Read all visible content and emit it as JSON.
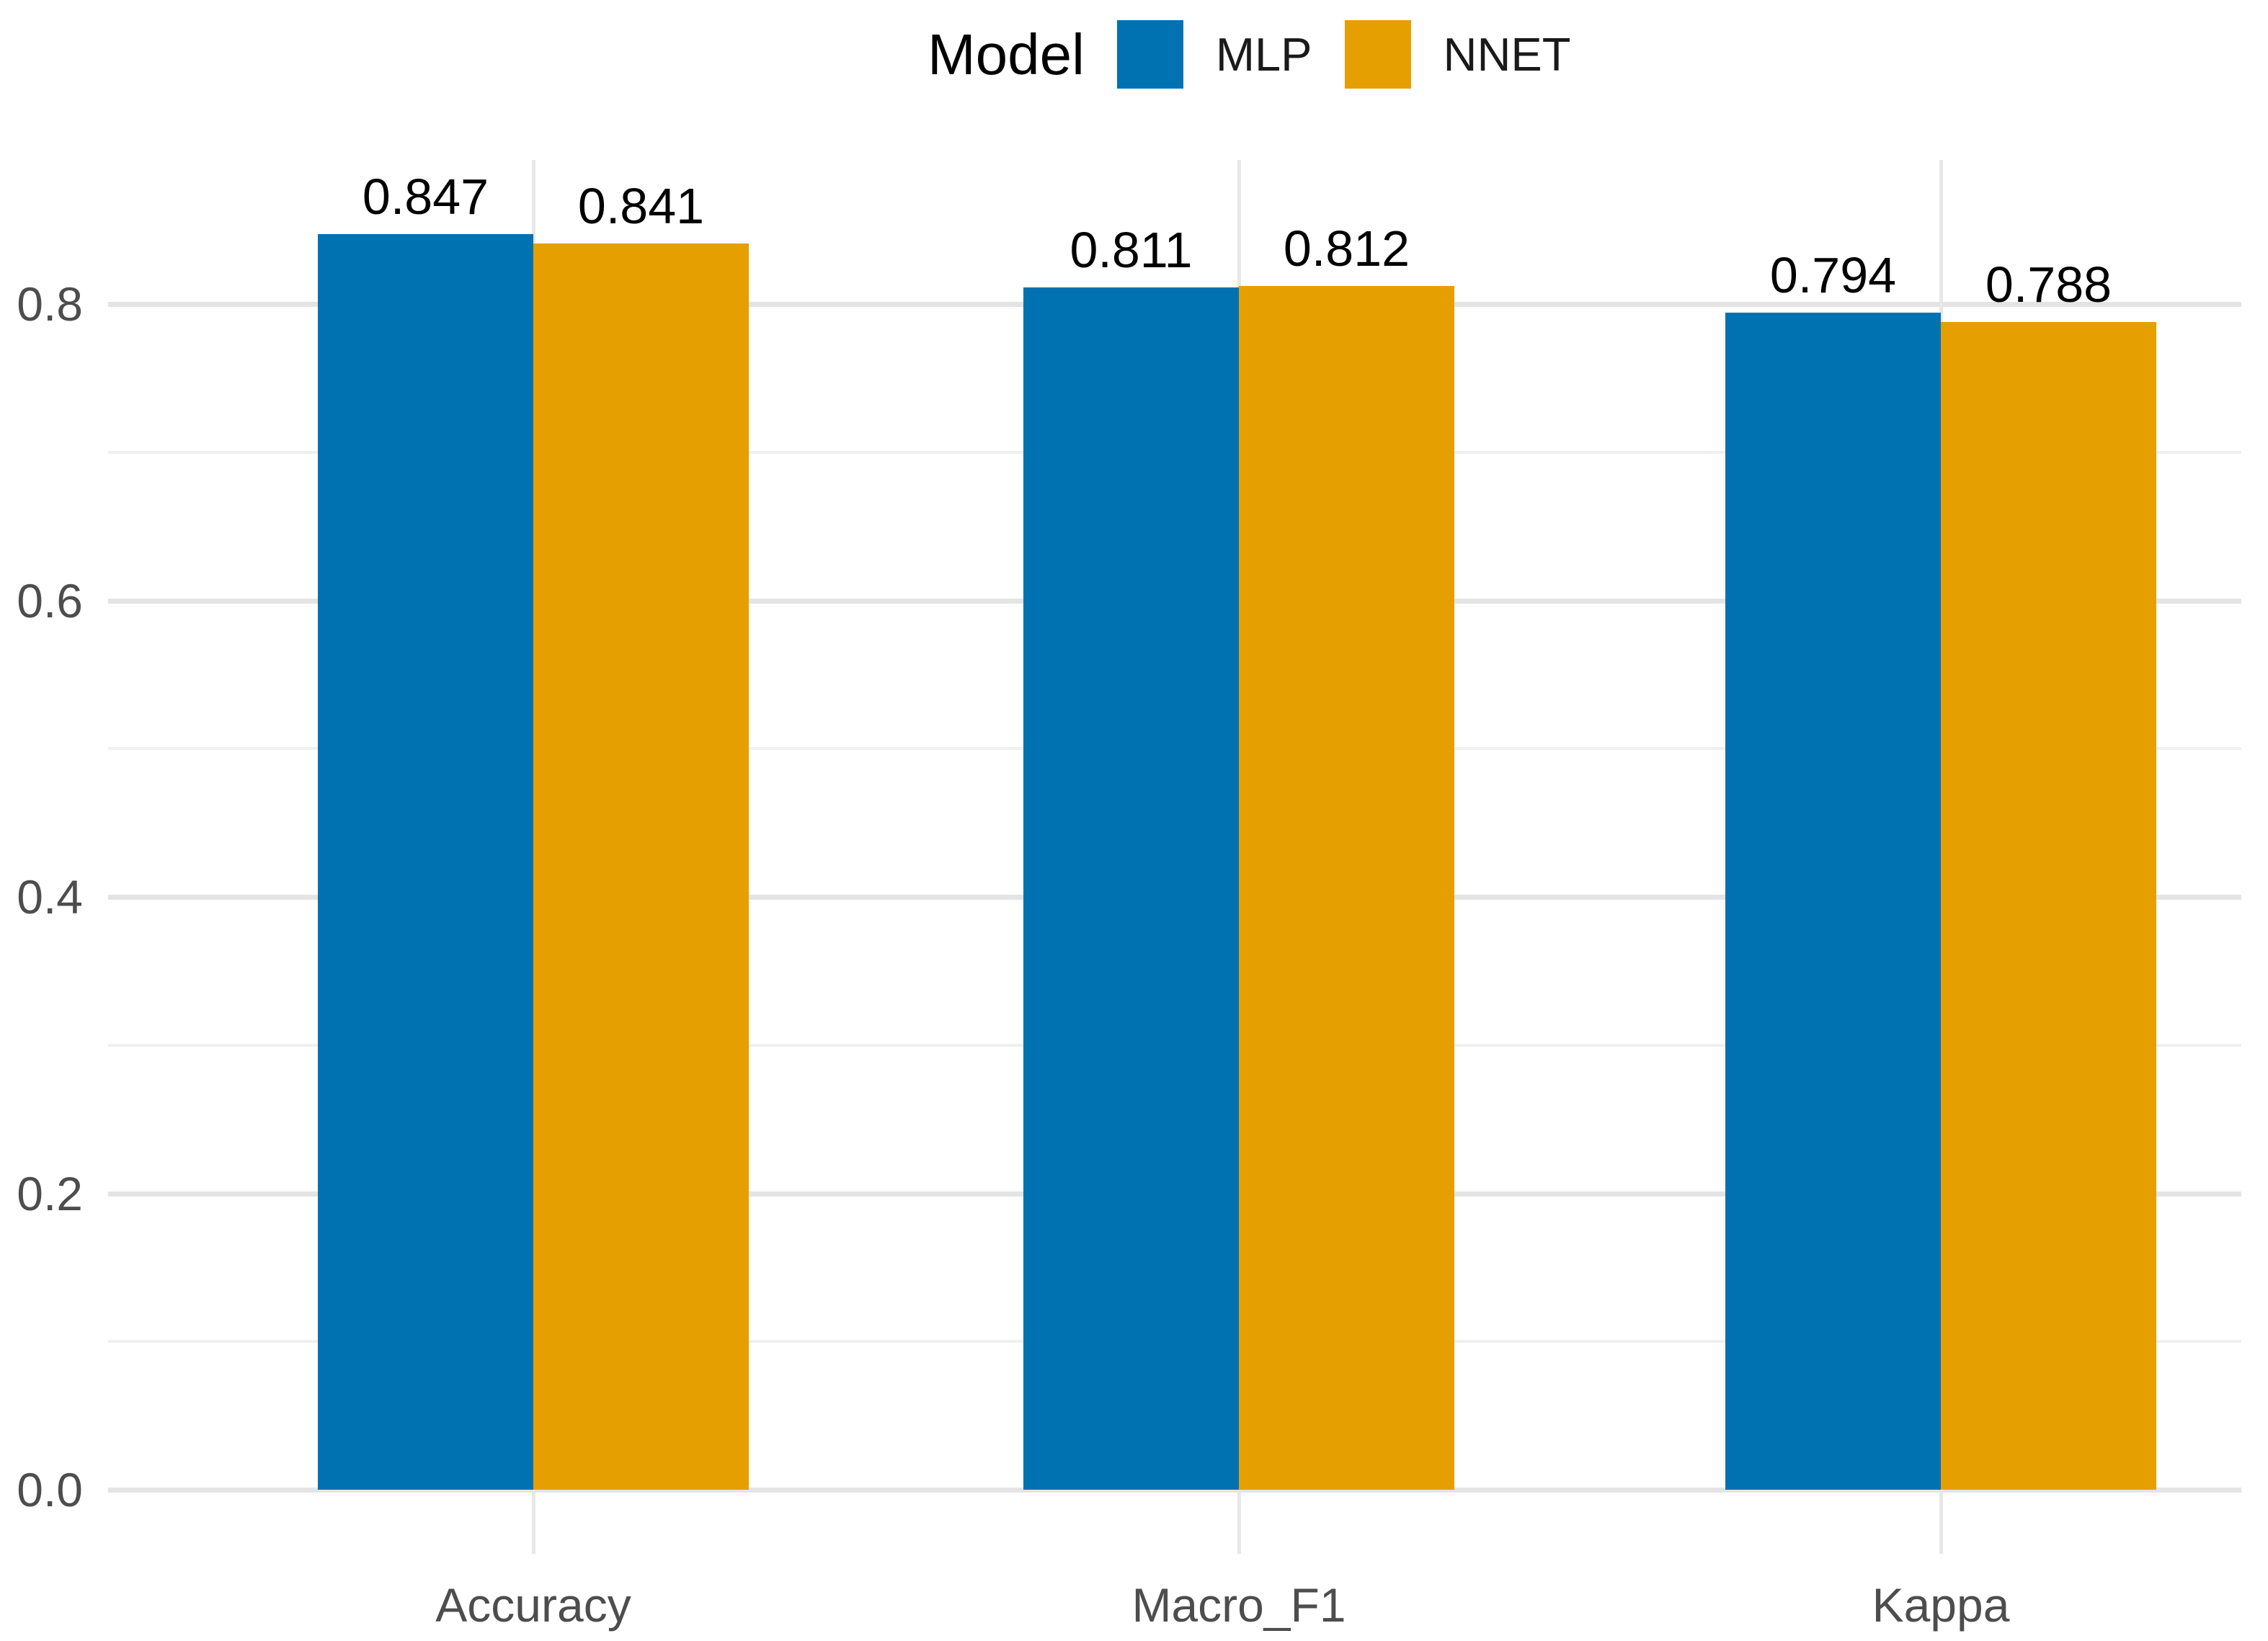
{
  "legend": {
    "title": "Model"
  },
  "chart_data": {
    "type": "bar",
    "title": "",
    "xlabel": "",
    "ylabel": "",
    "categories": [
      "Accuracy",
      "Macro_F1",
      "Kappa"
    ],
    "series": [
      {
        "name": "MLP",
        "color": "#0072B2",
        "values": [
          0.847,
          0.811,
          0.794
        ]
      },
      {
        "name": "NNET",
        "color": "#E69F00",
        "values": [
          0.841,
          0.812,
          0.788
        ]
      }
    ],
    "value_labels": {
      "MLP": [
        "0.847",
        "0.811",
        "0.794"
      ],
      "NNET": [
        "0.841",
        "0.812",
        "0.788"
      ]
    },
    "ylim": [
      0.0,
      0.9
    ],
    "y_major_ticks": [
      0.0,
      0.2,
      0.4,
      0.6,
      0.8
    ],
    "y_tick_labels": [
      "0.0",
      "0.2",
      "0.4",
      "0.6",
      "0.8"
    ],
    "y_minor_ticks": [
      0.1,
      0.3,
      0.5,
      0.7
    ],
    "grid": true,
    "legend_position": "top",
    "legend_title": "Model",
    "colors": {
      "mlp_bar": "#0072B2",
      "nnet_bar": "#E69F00",
      "grid_major": "#e4e4e4",
      "grid_minor": "#f0f0f0",
      "axis_text": "#4d4d4d",
      "value_label_text": "#000000",
      "background": "#ffffff"
    }
  }
}
